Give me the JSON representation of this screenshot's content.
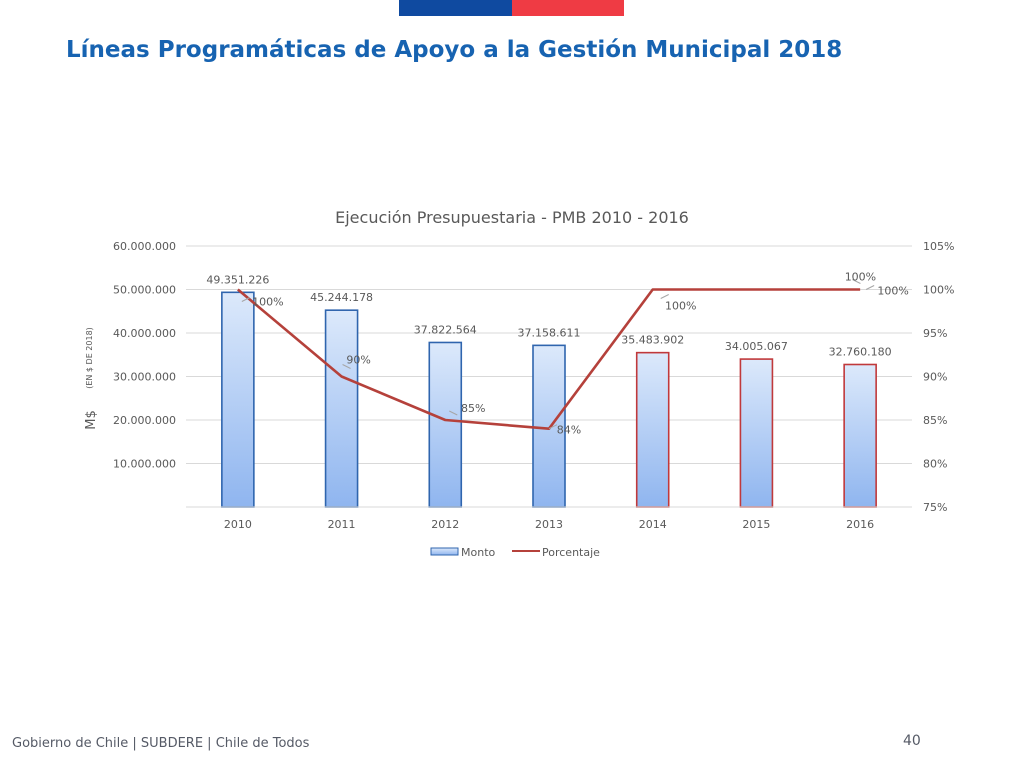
{
  "slide": {
    "title": "Líneas Programáticas de Apoyo a la Gestión Municipal 2018",
    "footer": "Gobierno de Chile | SUBDERE | Chile de Todos",
    "page_number": "40"
  },
  "colors": {
    "flag_blue": "#0f4aa0",
    "flag_red": "#ef3b44",
    "title_blue": "#1763b1",
    "bar_fill_top": "#dce9fb",
    "bar_fill_bottom": "#8fb5ef",
    "bar_outline_blue": "#2f65ae",
    "bar_outline_red": "#c0393b",
    "line_color": "#b5413b"
  },
  "chart_data": {
    "type": "bar",
    "title": "Ejecución  Presupuestaria  - PMB 2010 - 2016",
    "ylabel": "M$",
    "ylabel_note": "(EN $ DE 2018)",
    "y2label": "",
    "categories": [
      "2010",
      "2011",
      "2012",
      "2013",
      "2014",
      "2015",
      "2016"
    ],
    "series": [
      {
        "name": "Monto",
        "kind": "bar",
        "axis": "left",
        "values": [
          49351226,
          45244178,
          37822564,
          37158611,
          35483902,
          34005067,
          32760180
        ],
        "labels": [
          "49.351.226",
          "45.244.178",
          "37.822.564",
          "37.158.611",
          "35.483.902",
          "34.005.067",
          "32.760.180"
        ]
      },
      {
        "name": "Porcentaje",
        "kind": "line",
        "axis": "right",
        "values": [
          100,
          90,
          85,
          84,
          100,
          100,
          100
        ],
        "labels": [
          "100%",
          "90%",
          "85%",
          "84%",
          "100%",
          "100%",
          "100%"
        ]
      }
    ],
    "outline_red_categories": [
      "2014",
      "2015",
      "2016"
    ],
    "ylim": [
      0,
      60000000
    ],
    "yticks": [
      "10.000.000",
      "20.000.000",
      "30.000.000",
      "40.000.000",
      "50.000.000",
      "60.000.000"
    ],
    "y2lim": [
      75,
      105
    ],
    "y2ticks": [
      "75%",
      "80%",
      "85%",
      "90%",
      "95%",
      "100%",
      "105%"
    ],
    "grid": true,
    "legend": "bottom"
  }
}
